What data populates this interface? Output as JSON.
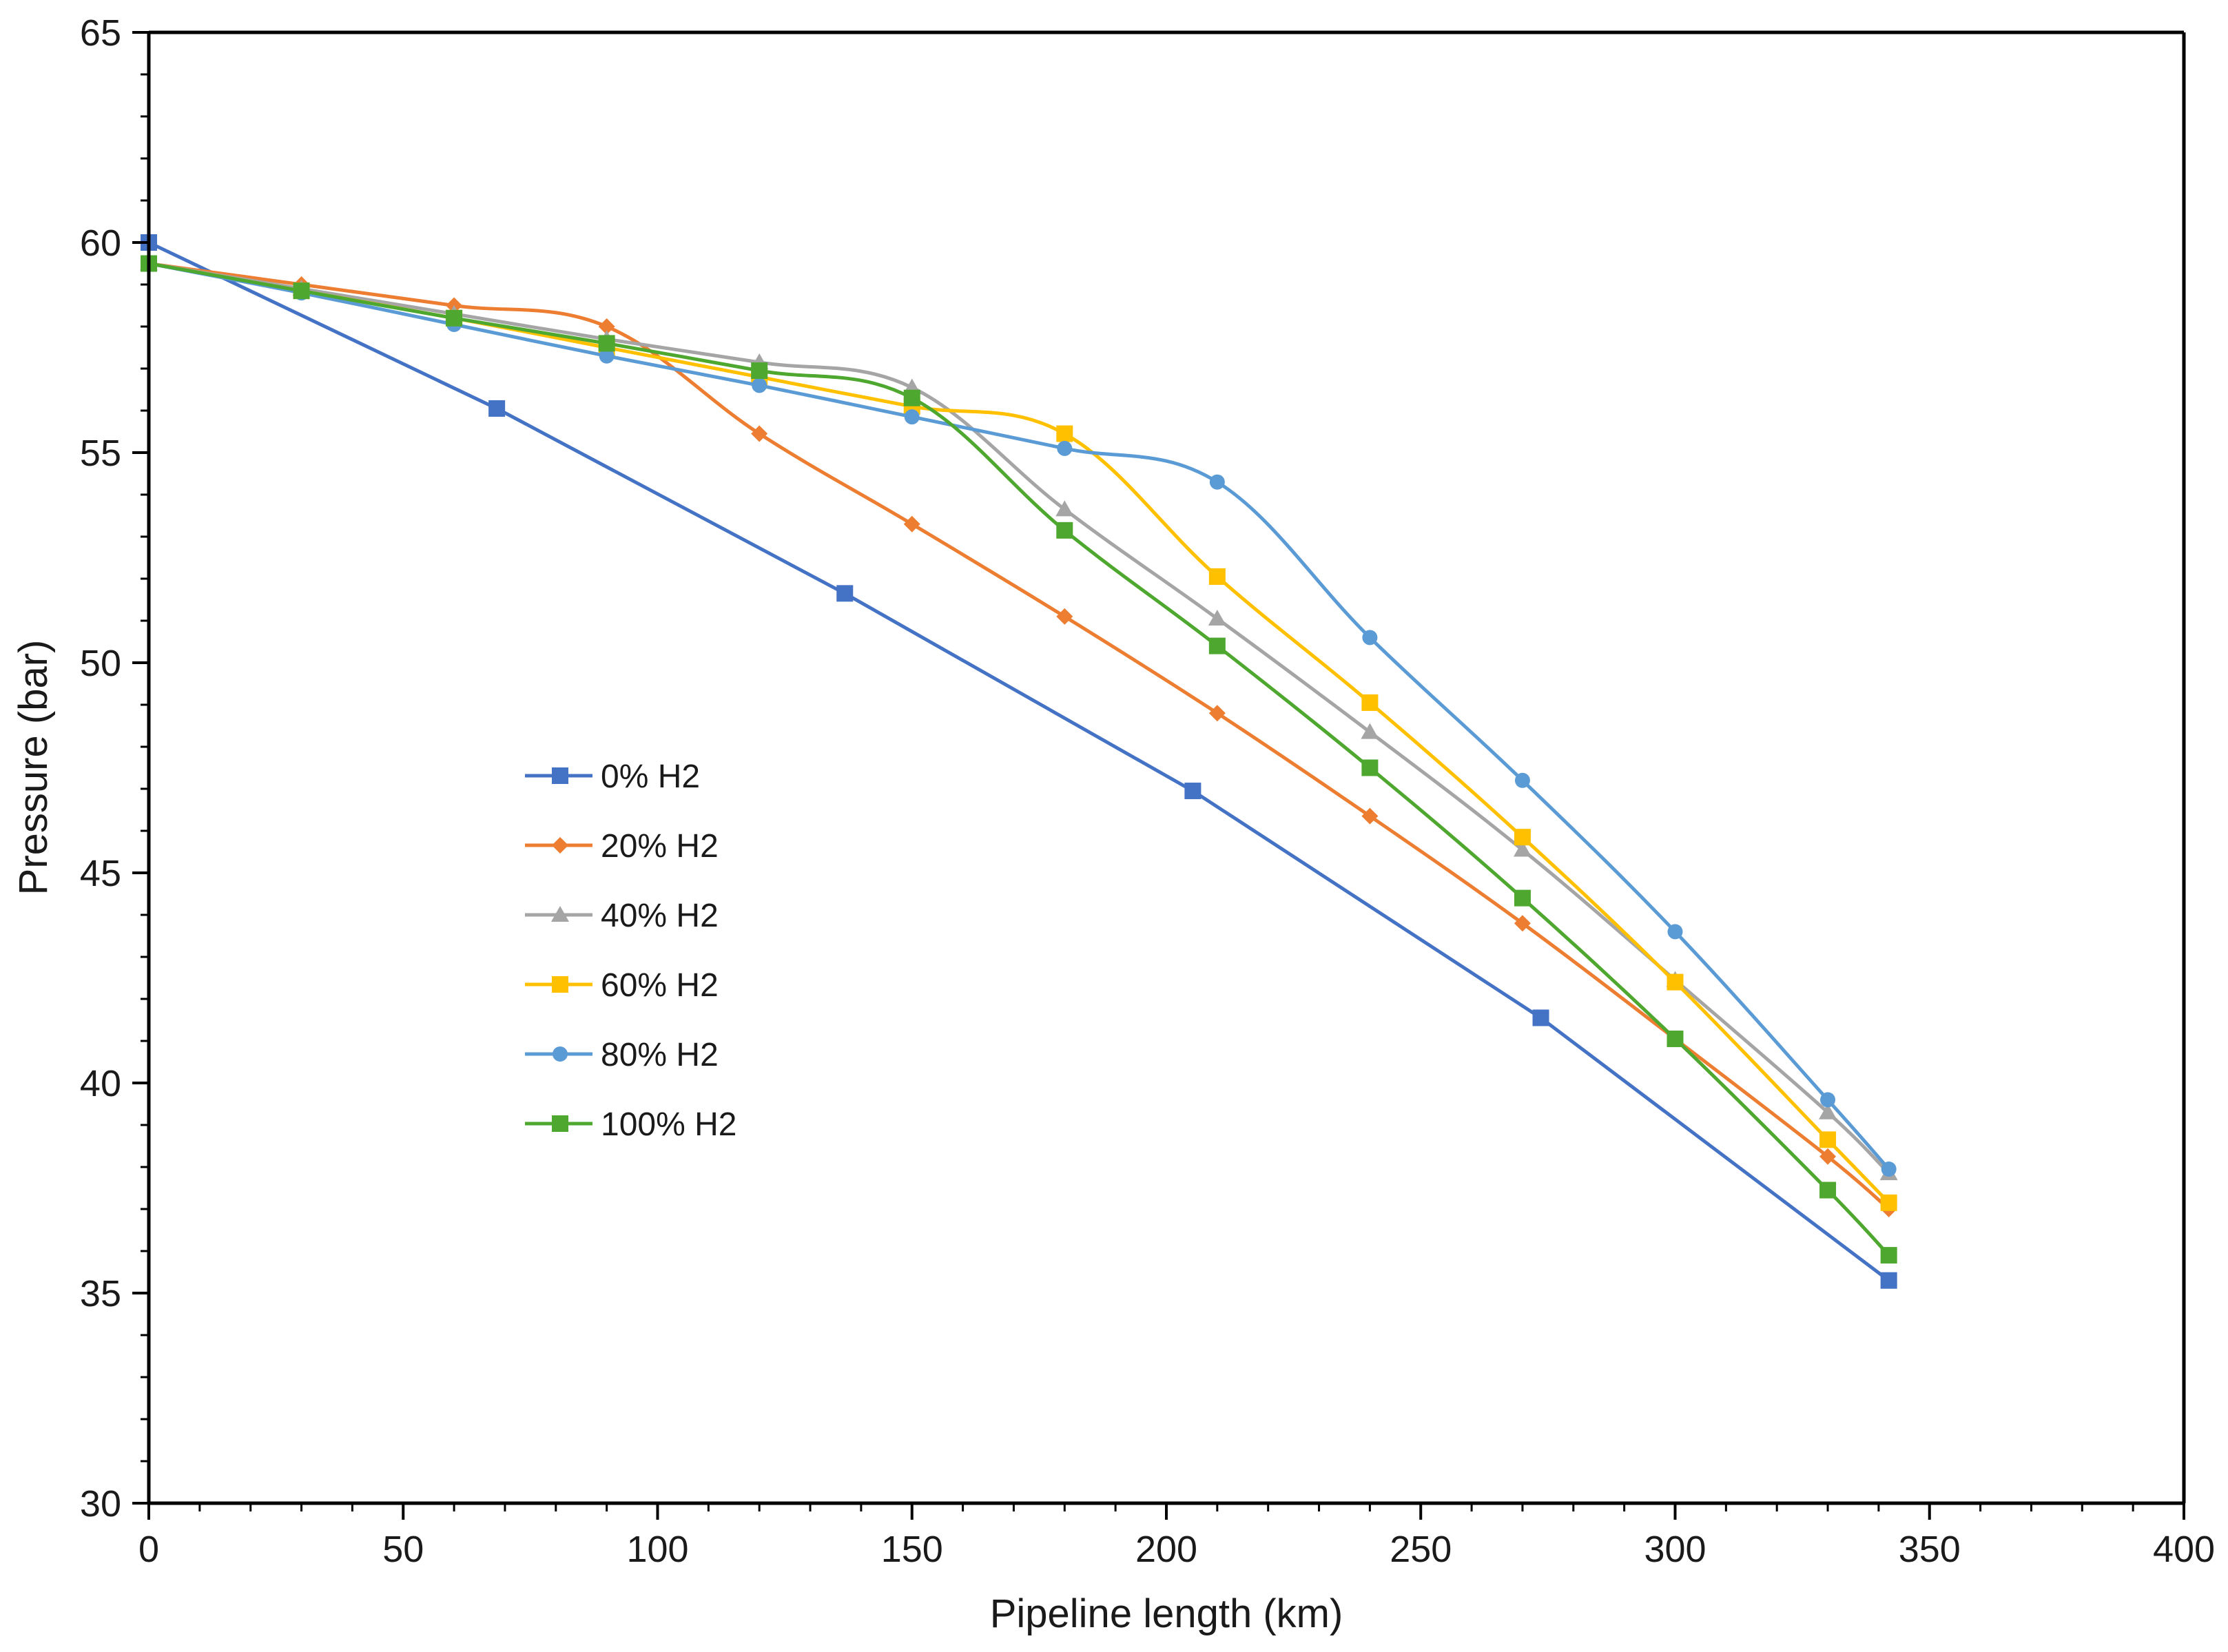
{
  "chart_data": {
    "type": "line",
    "title": "",
    "xlabel": "Pipeline length (km)",
    "ylabel": "Pressure (bar)",
    "xlim": [
      0,
      400
    ],
    "ylim": [
      30,
      65
    ],
    "xticks": [
      0,
      50,
      100,
      150,
      200,
      250,
      300,
      350,
      400
    ],
    "yticks": [
      30,
      35,
      40,
      45,
      50,
      55,
      60,
      65
    ],
    "x_minor_step": 10,
    "y_minor_step": 1,
    "grid": false,
    "legend_position": "center-left",
    "series": [
      {
        "name": "0% H2",
        "color": "#4472C4",
        "marker": "square",
        "smooth": false,
        "points": [
          [
            0,
            60.0
          ],
          [
            68.4,
            56.05
          ],
          [
            136.8,
            51.65
          ],
          [
            205.2,
            46.95
          ],
          [
            273.6,
            41.55
          ],
          [
            342,
            35.3
          ]
        ]
      },
      {
        "name": "20% H2",
        "color": "#ED7D31",
        "marker": "diamond",
        "smooth": true,
        "points": [
          [
            0,
            59.5
          ],
          [
            30,
            59.0
          ],
          [
            60,
            58.5
          ],
          [
            90,
            58.0
          ],
          [
            120,
            55.45
          ],
          [
            150,
            53.3
          ],
          [
            180,
            51.1
          ],
          [
            210,
            48.8
          ],
          [
            240,
            46.35
          ],
          [
            270,
            43.8
          ],
          [
            300,
            41.05
          ],
          [
            330,
            38.25
          ],
          [
            342,
            37.0
          ]
        ]
      },
      {
        "name": "40% H2",
        "color": "#A5A5A5",
        "marker": "triangle",
        "smooth": true,
        "points": [
          [
            0,
            59.5
          ],
          [
            30,
            58.9
          ],
          [
            60,
            58.3
          ],
          [
            90,
            57.7
          ],
          [
            120,
            57.15
          ],
          [
            150,
            56.55
          ],
          [
            180,
            53.65
          ],
          [
            210,
            51.05
          ],
          [
            240,
            48.35
          ],
          [
            270,
            45.55
          ],
          [
            300,
            42.45
          ],
          [
            330,
            39.3
          ],
          [
            342,
            37.85
          ]
        ]
      },
      {
        "name": "60% H2",
        "color": "#FFC000",
        "marker": "square",
        "smooth": true,
        "points": [
          [
            0,
            59.5
          ],
          [
            30,
            58.85
          ],
          [
            60,
            58.2
          ],
          [
            90,
            57.5
          ],
          [
            120,
            56.8
          ],
          [
            150,
            56.1
          ],
          [
            180,
            55.45
          ],
          [
            210,
            52.05
          ],
          [
            240,
            49.05
          ],
          [
            270,
            45.85
          ],
          [
            300,
            42.4
          ],
          [
            330,
            38.65
          ],
          [
            342,
            37.15
          ]
        ]
      },
      {
        "name": "80% H2",
        "color": "#5B9BD5",
        "marker": "circle",
        "smooth": true,
        "points": [
          [
            0,
            59.5
          ],
          [
            30,
            58.8
          ],
          [
            60,
            58.05
          ],
          [
            90,
            57.3
          ],
          [
            120,
            56.6
          ],
          [
            150,
            55.85
          ],
          [
            180,
            55.1
          ],
          [
            210,
            54.3
          ],
          [
            240,
            50.6
          ],
          [
            270,
            47.2
          ],
          [
            300,
            43.6
          ],
          [
            330,
            39.6
          ],
          [
            342,
            37.95
          ]
        ]
      },
      {
        "name": "100% H2",
        "color": "#4EA72E",
        "marker": "square",
        "smooth": true,
        "points": [
          [
            0,
            59.5
          ],
          [
            30,
            58.85
          ],
          [
            60,
            58.2
          ],
          [
            90,
            57.6
          ],
          [
            120,
            56.95
          ],
          [
            150,
            56.3
          ],
          [
            180,
            53.15
          ],
          [
            210,
            50.4
          ],
          [
            240,
            47.5
          ],
          [
            270,
            44.4
          ],
          [
            300,
            41.05
          ],
          [
            330,
            37.45
          ],
          [
            342,
            35.9
          ]
        ]
      }
    ]
  }
}
